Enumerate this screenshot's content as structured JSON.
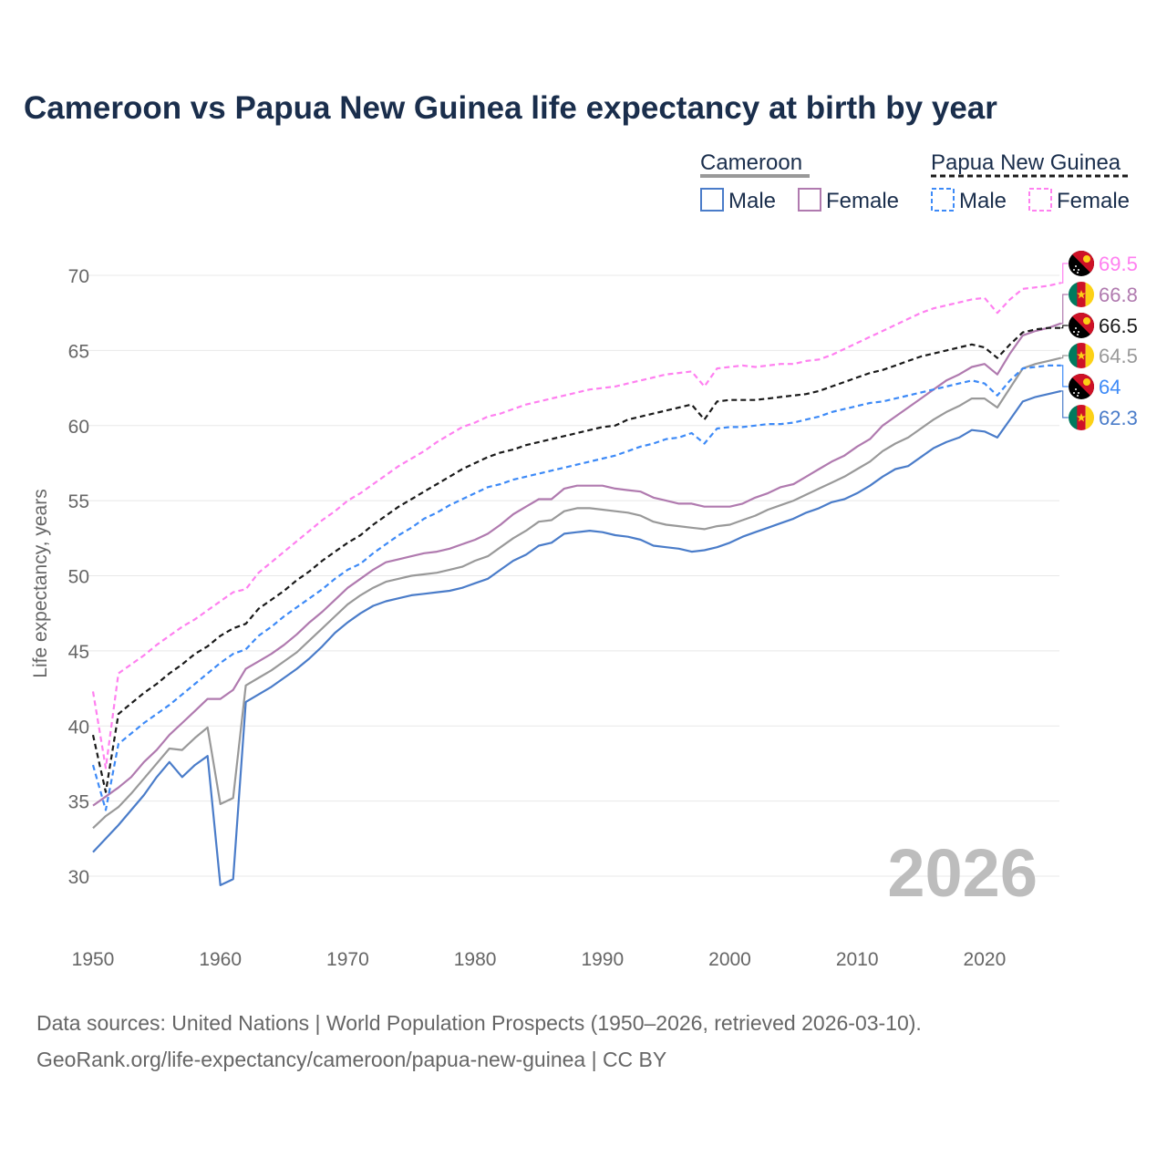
{
  "chart_data": {
    "type": "line",
    "title": "Cameroon vs Papua New Guinea life expectancy at birth by year",
    "xlabel": "",
    "ylabel": "Life expectancy, years",
    "xlim": [
      1950,
      2026
    ],
    "ylim": [
      26,
      72
    ],
    "x_ticks": [
      1950,
      1960,
      1970,
      1980,
      1990,
      2000,
      2010,
      2020
    ],
    "y_ticks": [
      30,
      35,
      40,
      45,
      50,
      55,
      60,
      65,
      70
    ],
    "grid": true,
    "watermark_year": "2026",
    "legend": {
      "groups": [
        {
          "country": "Cameroon",
          "items": [
            "Male",
            "Female"
          ]
        },
        {
          "country": "Papua New Guinea",
          "items": [
            "Male",
            "Female"
          ]
        }
      ],
      "placement": "top-right"
    },
    "x_start": 1950,
    "series": [
      {
        "name": "Cameroon Female",
        "color": "#b07aaf",
        "dash": false,
        "end_label": "66.8",
        "flag": "cameroon",
        "values": [
          34.7,
          35.3,
          35.9,
          36.6,
          37.6,
          38.4,
          39.4,
          40.2,
          41.0,
          41.8,
          41.8,
          42.4,
          43.8,
          44.3,
          44.8,
          45.4,
          46.1,
          46.9,
          47.6,
          48.4,
          49.2,
          49.8,
          50.4,
          50.9,
          51.1,
          51.3,
          51.5,
          51.6,
          51.8,
          52.1,
          52.4,
          52.8,
          53.4,
          54.1,
          54.6,
          55.1,
          55.1,
          55.8,
          56.0,
          56.0,
          56.0,
          55.8,
          55.7,
          55.6,
          55.2,
          55.0,
          54.8,
          54.8,
          54.6,
          54.6,
          54.6,
          54.8,
          55.2,
          55.5,
          55.9,
          56.1,
          56.6,
          57.1,
          57.6,
          58.0,
          58.6,
          59.1,
          60.0,
          60.6,
          61.2,
          61.8,
          62.4,
          63.0,
          63.4,
          63.9,
          64.1,
          63.4,
          64.8,
          66.0,
          66.3,
          66.5,
          66.8
        ]
      },
      {
        "name": "Cameroon",
        "color": "#999999",
        "dash": false,
        "end_label": "64.5",
        "flag": "cameroon",
        "values": [
          33.2,
          34.0,
          34.6,
          35.5,
          36.5,
          37.5,
          38.5,
          38.4,
          39.2,
          39.9,
          34.8,
          35.2,
          42.7,
          43.2,
          43.7,
          44.3,
          44.9,
          45.7,
          46.5,
          47.3,
          48.1,
          48.7,
          49.2,
          49.6,
          49.8,
          50.0,
          50.1,
          50.2,
          50.4,
          50.6,
          51.0,
          51.3,
          51.9,
          52.5,
          53.0,
          53.6,
          53.7,
          54.3,
          54.5,
          54.5,
          54.4,
          54.3,
          54.2,
          54.0,
          53.6,
          53.4,
          53.3,
          53.2,
          53.1,
          53.3,
          53.4,
          53.7,
          54.0,
          54.4,
          54.7,
          55.0,
          55.4,
          55.8,
          56.2,
          56.6,
          57.1,
          57.6,
          58.3,
          58.8,
          59.2,
          59.8,
          60.4,
          60.9,
          61.3,
          61.8,
          61.8,
          61.2,
          62.5,
          63.8,
          64.1,
          64.3,
          64.5
        ]
      },
      {
        "name": "Cameroon Male",
        "color": "#4a7cc9",
        "dash": false,
        "end_label": "62.3",
        "flag": "cameroon",
        "values": [
          31.6,
          32.5,
          33.4,
          34.4,
          35.4,
          36.6,
          37.6,
          36.6,
          37.4,
          38.0,
          29.4,
          29.8,
          41.6,
          42.1,
          42.6,
          43.2,
          43.8,
          44.5,
          45.3,
          46.2,
          46.9,
          47.5,
          48.0,
          48.3,
          48.5,
          48.7,
          48.8,
          48.9,
          49.0,
          49.2,
          49.5,
          49.8,
          50.4,
          51.0,
          51.4,
          52.0,
          52.2,
          52.8,
          52.9,
          53.0,
          52.9,
          52.7,
          52.6,
          52.4,
          52.0,
          51.9,
          51.8,
          51.6,
          51.7,
          51.9,
          52.2,
          52.6,
          52.9,
          53.2,
          53.5,
          53.8,
          54.2,
          54.5,
          54.9,
          55.1,
          55.5,
          56.0,
          56.6,
          57.1,
          57.3,
          57.9,
          58.5,
          58.9,
          59.2,
          59.7,
          59.6,
          59.2,
          60.4,
          61.6,
          61.9,
          62.1,
          62.3
        ]
      },
      {
        "name": "Papua New Guinea Female",
        "color": "#ff80f0",
        "dash": true,
        "end_label": "69.5",
        "flag": "png",
        "values": [
          42.3,
          37.2,
          43.5,
          44.1,
          44.7,
          45.4,
          46.0,
          46.6,
          47.1,
          47.7,
          48.3,
          48.9,
          49.1,
          50.2,
          50.9,
          51.6,
          52.3,
          53.0,
          53.7,
          54.3,
          55.0,
          55.5,
          56.1,
          56.7,
          57.3,
          57.8,
          58.3,
          58.9,
          59.4,
          59.9,
          60.2,
          60.6,
          60.8,
          61.1,
          61.4,
          61.6,
          61.8,
          62.0,
          62.2,
          62.4,
          62.5,
          62.6,
          62.8,
          63.0,
          63.2,
          63.4,
          63.5,
          63.6,
          62.6,
          63.8,
          63.9,
          64.0,
          63.9,
          64.0,
          64.1,
          64.1,
          64.3,
          64.4,
          64.7,
          65.1,
          65.5,
          65.9,
          66.3,
          66.7,
          67.1,
          67.5,
          67.8,
          68.0,
          68.2,
          68.4,
          68.5,
          67.5,
          68.4,
          69.1,
          69.2,
          69.3,
          69.5
        ]
      },
      {
        "name": "Papua New Guinea",
        "color": "#1a1a1a",
        "dash": true,
        "end_label": "66.5",
        "flag": "png",
        "values": [
          39.4,
          35.6,
          40.8,
          41.5,
          42.2,
          42.8,
          43.5,
          44.1,
          44.8,
          45.3,
          46.0,
          46.5,
          46.8,
          47.8,
          48.4,
          49.0,
          49.7,
          50.3,
          51.0,
          51.6,
          52.2,
          52.7,
          53.4,
          54.0,
          54.6,
          55.1,
          55.6,
          56.1,
          56.6,
          57.1,
          57.5,
          57.9,
          58.2,
          58.4,
          58.7,
          58.9,
          59.1,
          59.3,
          59.5,
          59.7,
          59.9,
          60.0,
          60.4,
          60.6,
          60.8,
          61.0,
          61.2,
          61.4,
          60.4,
          61.6,
          61.7,
          61.7,
          61.7,
          61.8,
          61.9,
          62.0,
          62.1,
          62.3,
          62.6,
          62.9,
          63.2,
          63.5,
          63.7,
          64.0,
          64.3,
          64.6,
          64.8,
          65.0,
          65.2,
          65.4,
          65.2,
          64.5,
          65.4,
          66.2,
          66.4,
          66.5,
          66.5
        ]
      },
      {
        "name": "Papua New Guinea Male",
        "color": "#3d8af7",
        "dash": true,
        "end_label": "64",
        "flag": "png",
        "values": [
          37.4,
          34.4,
          38.8,
          39.5,
          40.2,
          40.8,
          41.4,
          42.1,
          42.8,
          43.5,
          44.2,
          44.8,
          45.1,
          46.0,
          46.6,
          47.3,
          47.9,
          48.5,
          49.1,
          49.8,
          50.4,
          50.8,
          51.5,
          52.1,
          52.7,
          53.2,
          53.8,
          54.2,
          54.7,
          55.1,
          55.5,
          55.9,
          56.1,
          56.4,
          56.6,
          56.8,
          57.0,
          57.2,
          57.4,
          57.6,
          57.8,
          58.0,
          58.3,
          58.6,
          58.8,
          59.1,
          59.2,
          59.5,
          58.8,
          59.8,
          59.9,
          59.9,
          60.0,
          60.1,
          60.1,
          60.2,
          60.4,
          60.6,
          60.9,
          61.1,
          61.3,
          61.5,
          61.6,
          61.8,
          62.0,
          62.2,
          62.4,
          62.6,
          62.8,
          63.0,
          62.8,
          62.0,
          63.0,
          63.8,
          63.9,
          64.0,
          64.0
        ]
      }
    ],
    "source_line1": "Data sources: United Nations | World Population Prospects (1950–2026, retrieved 2026-03-10).",
    "source_line2": "GeoRank.org/life-expectancy/cameroon/papua-new-guinea | CC BY"
  }
}
